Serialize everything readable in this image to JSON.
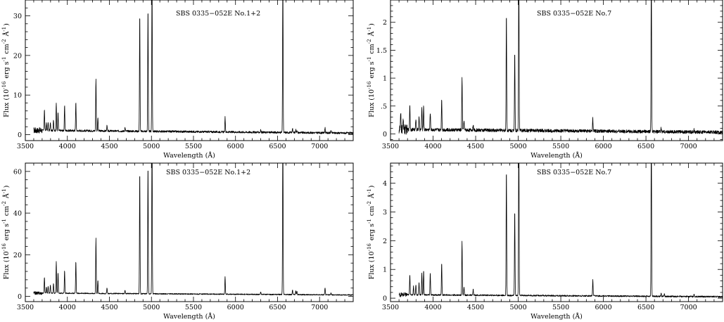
{
  "chart_data": [
    {
      "type": "line",
      "panel": "top-left",
      "title": "SBS 0335−052E No.1+2",
      "xlabel": "Wavelength (Å)",
      "ylabel_html": "Flux (10<sup>-16</sup> erg s<sup>-1</sup> cm<sup>-2</sup> Å<sup>-1</sup>)",
      "xlim": [
        3500,
        7400
      ],
      "ylim": [
        -1.5,
        34
      ],
      "xticks": [
        3500,
        4000,
        4500,
        5000,
        5500,
        6000,
        6500,
        7000
      ],
      "yticks": [
        0,
        10,
        20,
        30
      ],
      "continuum": {
        "start": 1.1,
        "end": 0.4,
        "noise": 0.25
      },
      "lines": [
        {
          "x": 3727,
          "y": 5.3
        },
        {
          "x": 3750,
          "y": 1.8
        },
        {
          "x": 3771,
          "y": 2.0
        },
        {
          "x": 3798,
          "y": 2.2
        },
        {
          "x": 3835,
          "y": 2.6
        },
        {
          "x": 3868,
          "y": 7.0
        },
        {
          "x": 3889,
          "y": 4.5
        },
        {
          "x": 3967,
          "y": 6.3
        },
        {
          "x": 4101,
          "y": 7.3
        },
        {
          "x": 4340,
          "y": 13.3
        },
        {
          "x": 4363,
          "y": 3.5
        },
        {
          "x": 4471,
          "y": 1.3
        },
        {
          "x": 4686,
          "y": 0.9
        },
        {
          "x": 4861,
          "y": 29.7
        },
        {
          "x": 4959,
          "y": 31.2
        },
        {
          "x": 5007,
          "y": 40
        },
        {
          "x": 5876,
          "y": 3.7
        },
        {
          "x": 6300,
          "y": 0.6
        },
        {
          "x": 6563,
          "y": 40
        },
        {
          "x": 6678,
          "y": 1.2
        },
        {
          "x": 6717,
          "y": 0.8
        },
        {
          "x": 6731,
          "y": 0.7
        },
        {
          "x": 7065,
          "y": 1.3
        },
        {
          "x": 7136,
          "y": 0.6
        }
      ]
    },
    {
      "type": "line",
      "panel": "top-right",
      "title": "SBS 0335−052E No.7",
      "xlabel": "Wavelength (Å)",
      "ylabel_html": "Flux (10<sup>-16</sup> erg s<sup>-1</sup> cm<sup>-2</sup> Å<sup>-1</sup>)",
      "xlim": [
        3500,
        7400
      ],
      "ylim": [
        -0.12,
        2.4
      ],
      "xticks": [
        3500,
        4000,
        4500,
        5000,
        5500,
        6000,
        6500,
        7000
      ],
      "yticks": [
        0,
        0.5,
        1,
        1.5,
        2
      ],
      "ytick_labels": [
        "0",
        ".5",
        "1",
        "1.5",
        "2"
      ],
      "continuum": {
        "start": 0.08,
        "end": 0.03,
        "noise": 0.03
      },
      "lines": [
        {
          "x": 3620,
          "y": 0.25
        },
        {
          "x": 3650,
          "y": 0.2
        },
        {
          "x": 3727,
          "y": 0.45
        },
        {
          "x": 3798,
          "y": 0.2
        },
        {
          "x": 3835,
          "y": 0.22
        },
        {
          "x": 3868,
          "y": 0.4
        },
        {
          "x": 3889,
          "y": 0.43
        },
        {
          "x": 3967,
          "y": 0.32
        },
        {
          "x": 4101,
          "y": 0.56
        },
        {
          "x": 4340,
          "y": 0.95
        },
        {
          "x": 4363,
          "y": 0.18
        },
        {
          "x": 4471,
          "y": 0.1
        },
        {
          "x": 4861,
          "y": 2.1
        },
        {
          "x": 4959,
          "y": 1.43
        },
        {
          "x": 5007,
          "y": 3.0
        },
        {
          "x": 5876,
          "y": 0.22
        },
        {
          "x": 6563,
          "y": 3.0
        },
        {
          "x": 6678,
          "y": 0.07
        },
        {
          "x": 7065,
          "y": 0.05
        }
      ]
    },
    {
      "type": "line",
      "panel": "bottom-left",
      "title": "SBS 0335−052E No.1+2",
      "xlabel": "Wavelength (Å)",
      "ylabel_html": "Flux (10<sup>-16</sup> erg s<sup>-1</sup> cm<sup>-2</sup> Å<sup>-1</sup>)",
      "xlim": [
        3500,
        7400
      ],
      "ylim": [
        -2.5,
        64
      ],
      "xticks": [
        3500,
        4000,
        4500,
        5000,
        5500,
        6000,
        6500,
        7000
      ],
      "yticks": [
        0,
        20,
        40,
        60
      ],
      "continuum": {
        "start": 1.6,
        "end": 0.7,
        "noise": 0.25
      },
      "lines": [
        {
          "x": 3727,
          "y": 7.8
        },
        {
          "x": 3750,
          "y": 3.0
        },
        {
          "x": 3771,
          "y": 3.5
        },
        {
          "x": 3798,
          "y": 4.0
        },
        {
          "x": 3835,
          "y": 5.0
        },
        {
          "x": 3868,
          "y": 15.2
        },
        {
          "x": 3889,
          "y": 9.8
        },
        {
          "x": 3967,
          "y": 11.0
        },
        {
          "x": 4101,
          "y": 15.5
        },
        {
          "x": 4340,
          "y": 26.5
        },
        {
          "x": 4363,
          "y": 6.5
        },
        {
          "x": 4471,
          "y": 2.7
        },
        {
          "x": 4686,
          "y": 1.6
        },
        {
          "x": 4861,
          "y": 59
        },
        {
          "x": 4959,
          "y": 62
        },
        {
          "x": 5007,
          "y": 80
        },
        {
          "x": 5876,
          "y": 8.2
        },
        {
          "x": 6300,
          "y": 1.2
        },
        {
          "x": 6563,
          "y": 80
        },
        {
          "x": 6678,
          "y": 2.3
        },
        {
          "x": 6717,
          "y": 1.8
        },
        {
          "x": 6731,
          "y": 1.5
        },
        {
          "x": 7065,
          "y": 3.3
        },
        {
          "x": 7136,
          "y": 1.0
        }
      ]
    },
    {
      "type": "line",
      "panel": "bottom-right",
      "title": "SBS 0335−052E No.7",
      "xlabel": "Wavelength (Å)",
      "ylabel_html": "Flux (10<sup>-16</sup> erg s<sup>-1</sup> cm<sup>-2</sup> Å<sup>-1</sup>)",
      "xlim": [
        3500,
        7400
      ],
      "ylim": [
        -0.12,
        4.7
      ],
      "xticks": [
        3500,
        4000,
        4500,
        5000,
        5500,
        6000,
        6500,
        7000
      ],
      "yticks": [
        0,
        1,
        2,
        3,
        4
      ],
      "continuum": {
        "start": 0.12,
        "end": 0.05,
        "noise": 0.025
      },
      "lines": [
        {
          "x": 3727,
          "y": 0.72
        },
        {
          "x": 3770,
          "y": 0.3
        },
        {
          "x": 3798,
          "y": 0.35
        },
        {
          "x": 3835,
          "y": 0.45
        },
        {
          "x": 3868,
          "y": 0.75
        },
        {
          "x": 3889,
          "y": 0.85
        },
        {
          "x": 3967,
          "y": 0.78
        },
        {
          "x": 4101,
          "y": 1.1
        },
        {
          "x": 4340,
          "y": 1.9
        },
        {
          "x": 4363,
          "y": 0.3
        },
        {
          "x": 4471,
          "y": 0.2
        },
        {
          "x": 4861,
          "y": 4.4
        },
        {
          "x": 4959,
          "y": 3.0
        },
        {
          "x": 5007,
          "y": 6.0
        },
        {
          "x": 5876,
          "y": 0.55
        },
        {
          "x": 6563,
          "y": 6.0
        },
        {
          "x": 6678,
          "y": 0.12
        },
        {
          "x": 6717,
          "y": 0.1
        },
        {
          "x": 7065,
          "y": 0.1
        }
      ]
    }
  ]
}
